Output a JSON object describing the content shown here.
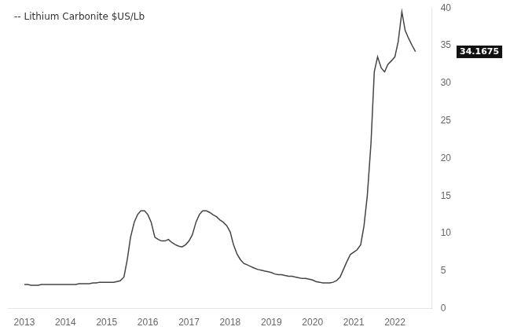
{
  "chart_data": {
    "type": "line",
    "x": [
      2013.0,
      2013.08,
      2013.17,
      2013.25,
      2013.33,
      2013.42,
      2013.5,
      2013.58,
      2013.67,
      2013.75,
      2013.83,
      2013.92,
      2014.0,
      2014.08,
      2014.17,
      2014.25,
      2014.33,
      2014.42,
      2014.5,
      2014.58,
      2014.67,
      2014.75,
      2014.83,
      2014.92,
      2015.0,
      2015.08,
      2015.17,
      2015.25,
      2015.33,
      2015.42,
      2015.5,
      2015.58,
      2015.67,
      2015.75,
      2015.83,
      2015.92,
      2016.0,
      2016.08,
      2016.17,
      2016.25,
      2016.33,
      2016.42,
      2016.5,
      2016.58,
      2016.67,
      2016.75,
      2016.83,
      2016.92,
      2017.0,
      2017.08,
      2017.17,
      2017.25,
      2017.33,
      2017.42,
      2017.5,
      2017.58,
      2017.67,
      2017.75,
      2017.83,
      2017.92,
      2018.0,
      2018.08,
      2018.17,
      2018.25,
      2018.33,
      2018.42,
      2018.5,
      2018.58,
      2018.67,
      2018.75,
      2018.83,
      2018.92,
      2019.0,
      2019.08,
      2019.17,
      2019.25,
      2019.33,
      2019.42,
      2019.5,
      2019.58,
      2019.67,
      2019.75,
      2019.83,
      2019.92,
      2020.0,
      2020.08,
      2020.17,
      2020.25,
      2020.33,
      2020.42,
      2020.5,
      2020.58,
      2020.67,
      2020.75,
      2020.83,
      2020.92,
      2021.0,
      2021.08,
      2021.17,
      2021.25,
      2021.33,
      2021.42,
      2021.5,
      2021.58,
      2021.67,
      2021.75,
      2021.83,
      2021.92,
      2022.0,
      2022.08,
      2022.17,
      2022.25,
      2022.33,
      2022.42,
      2022.5
    ],
    "values": [
      3.2,
      3.2,
      3.1,
      3.1,
      3.1,
      3.2,
      3.2,
      3.2,
      3.2,
      3.2,
      3.2,
      3.2,
      3.2,
      3.2,
      3.2,
      3.2,
      3.3,
      3.3,
      3.3,
      3.3,
      3.4,
      3.4,
      3.5,
      3.5,
      3.5,
      3.5,
      3.5,
      3.6,
      3.7,
      4.2,
      6.5,
      9.5,
      11.5,
      12.5,
      13.0,
      13.0,
      12.5,
      11.5,
      9.5,
      9.2,
      9.0,
      9.0,
      9.2,
      8.8,
      8.5,
      8.3,
      8.2,
      8.5,
      9.0,
      9.8,
      11.5,
      12.5,
      13.0,
      13.0,
      12.8,
      12.5,
      12.2,
      11.8,
      11.5,
      11.0,
      10.2,
      8.5,
      7.2,
      6.5,
      6.0,
      5.8,
      5.6,
      5.4,
      5.2,
      5.1,
      5.0,
      4.9,
      4.8,
      4.6,
      4.5,
      4.5,
      4.4,
      4.3,
      4.3,
      4.2,
      4.1,
      4.0,
      4.0,
      3.9,
      3.8,
      3.6,
      3.5,
      3.4,
      3.4,
      3.4,
      3.5,
      3.7,
      4.2,
      5.2,
      6.2,
      7.2,
      7.5,
      7.8,
      8.5,
      11.0,
      15.0,
      22.0,
      31.5,
      33.5,
      32.0,
      31.5,
      32.5,
      33.0,
      33.5,
      35.5,
      39.5,
      37.0,
      36.0,
      35.0,
      34.2
    ],
    "color": "#444444",
    "xlim": [
      2012.6,
      2022.9
    ],
    "xticks": [
      2013,
      2014,
      2015,
      2016,
      2017,
      2018,
      2019,
      2020,
      2021,
      2022
    ],
    "ylim": [
      0,
      40
    ],
    "yticks": [
      0,
      5,
      10,
      15,
      20,
      25,
      30,
      35,
      40
    ],
    "grid": false,
    "annotations": [
      {
        "text": "-- Lithium Carbonite $US/Lb"
      },
      {
        "text": "34.1675",
        "y": 34.1675
      }
    ]
  }
}
